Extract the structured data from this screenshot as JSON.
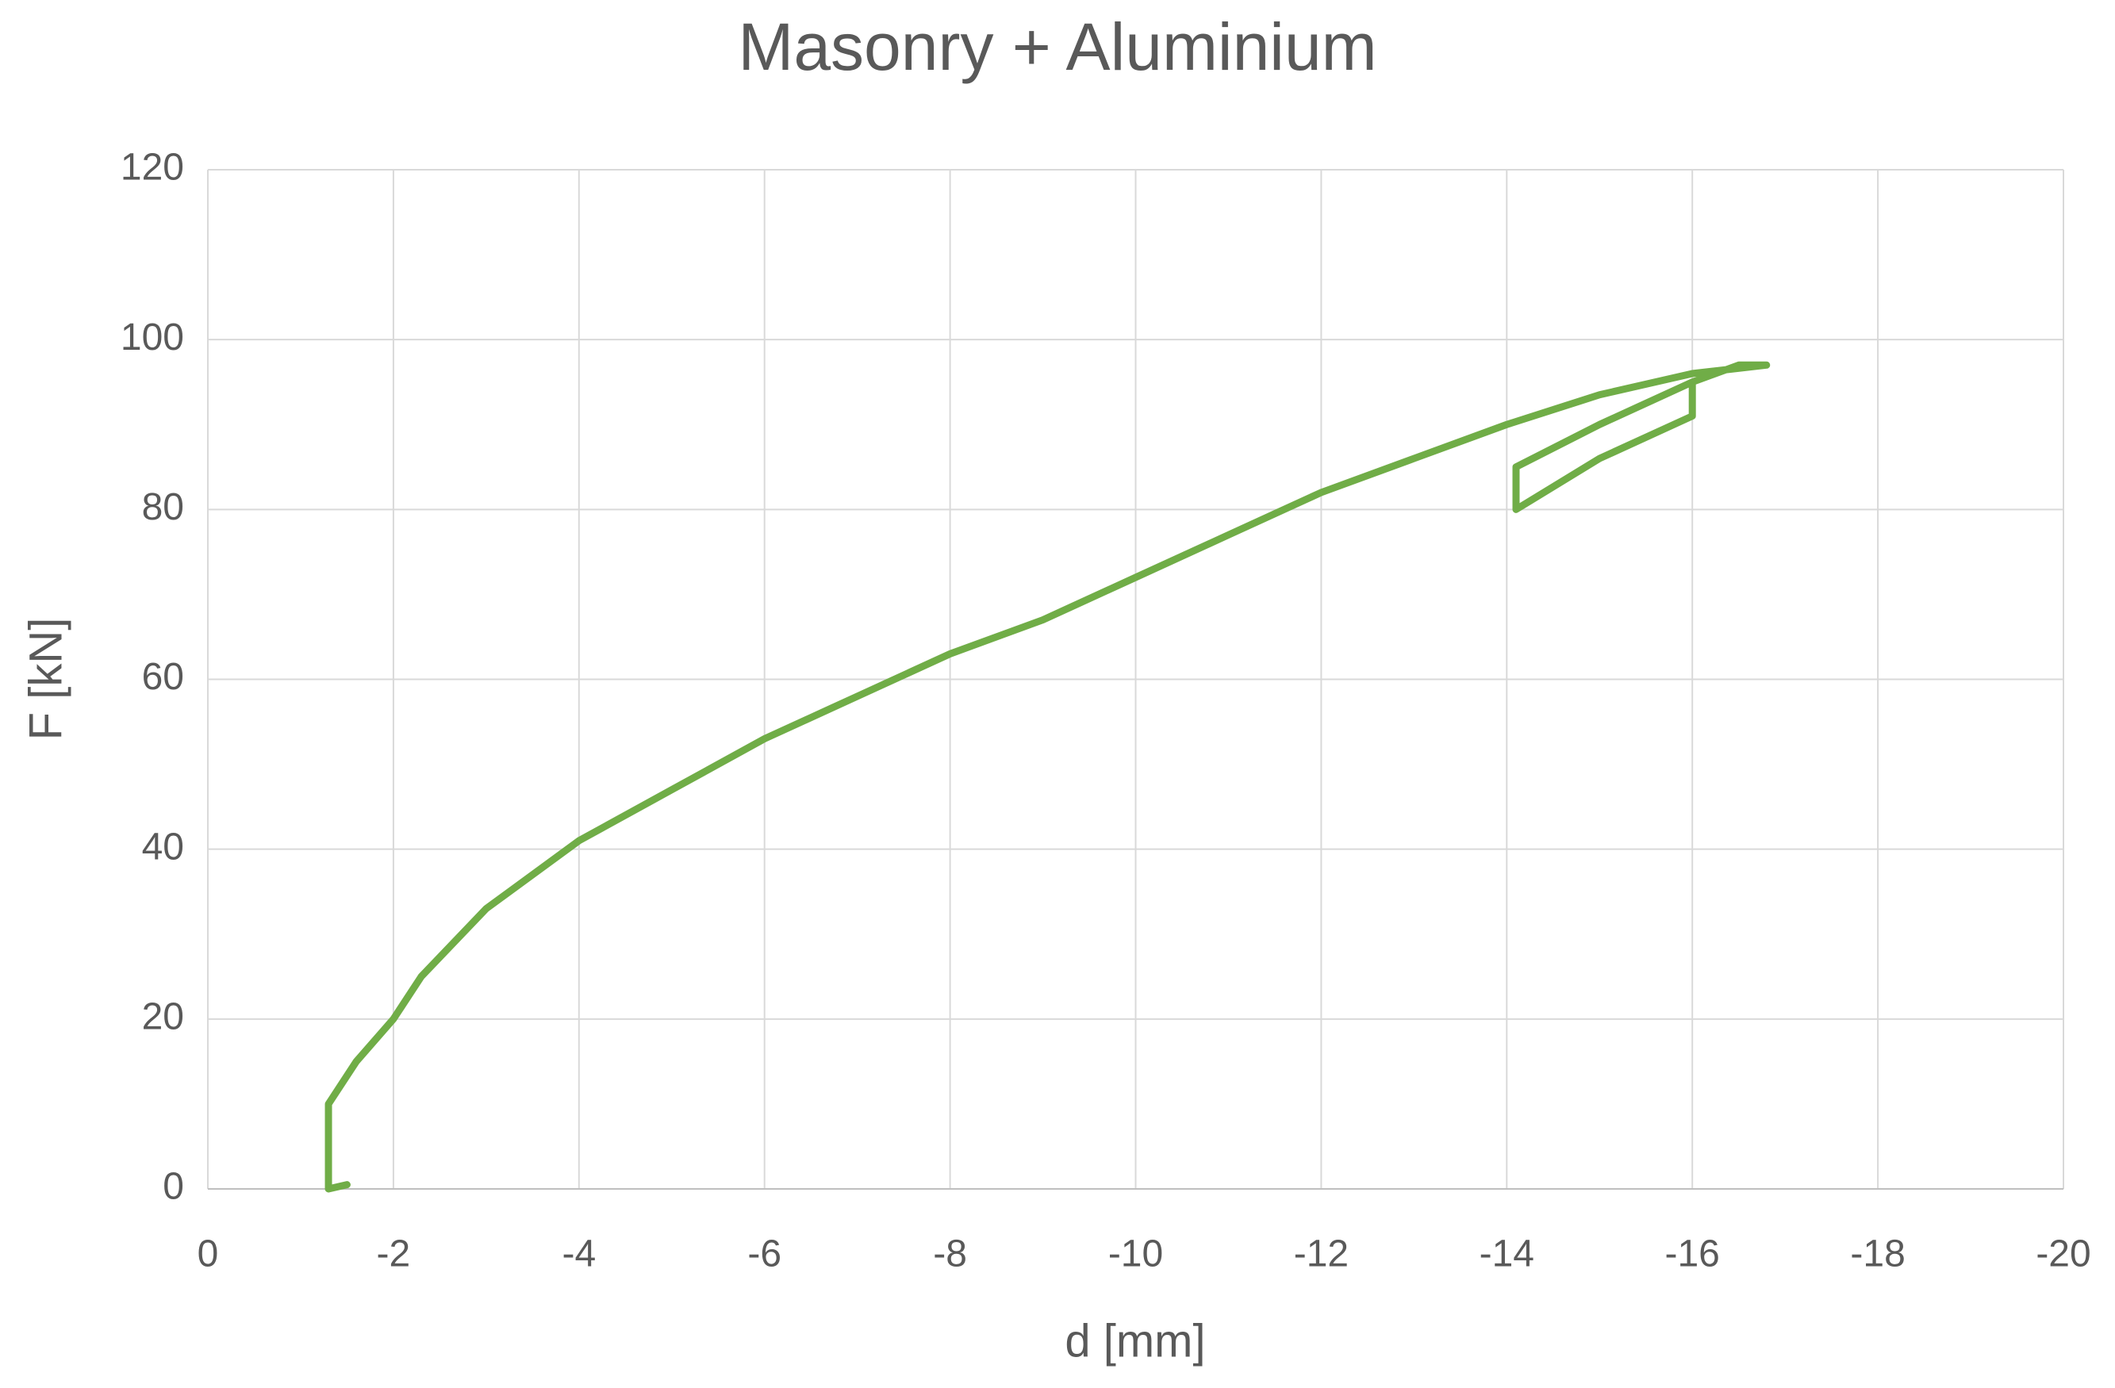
{
  "chart_data": {
    "type": "line",
    "title": "Masonry + Aluminium",
    "x_label": "d [mm]",
    "y_label": "F [kN]",
    "x": [
      -1.5,
      -1.3,
      -1.3,
      -1.6,
      -2.0,
      -2.3,
      -3.0,
      -4.0,
      -5.0,
      -6.0,
      -7.0,
      -8.0,
      -9.0,
      -10.0,
      -11.0,
      -12.0,
      -13.0,
      -14.0,
      -15.0,
      -16.0,
      -16.8,
      -16.5,
      -16.0,
      -16.0,
      -15.0,
      -14.1,
      -14.1,
      -15.0,
      -16.0
    ],
    "series": [
      {
        "name": "Masonry + Aluminium",
        "color": "#70ad47",
        "values": [
          0.5,
          0,
          10,
          15,
          20,
          25,
          33,
          41,
          47,
          53,
          58,
          63,
          67,
          72,
          77,
          82,
          86,
          90,
          93.5,
          96,
          97,
          97,
          95,
          91,
          86,
          80,
          85,
          90,
          95
        ]
      }
    ],
    "xlim": [
      0,
      -20
    ],
    "xticks": [
      0,
      -2,
      -4,
      -6,
      -8,
      -10,
      -12,
      -14,
      -16,
      -18,
      -20
    ],
    "ylim": [
      0,
      120
    ],
    "yticks": [
      0,
      20,
      40,
      60,
      80,
      100,
      120
    ],
    "grid": true
  }
}
